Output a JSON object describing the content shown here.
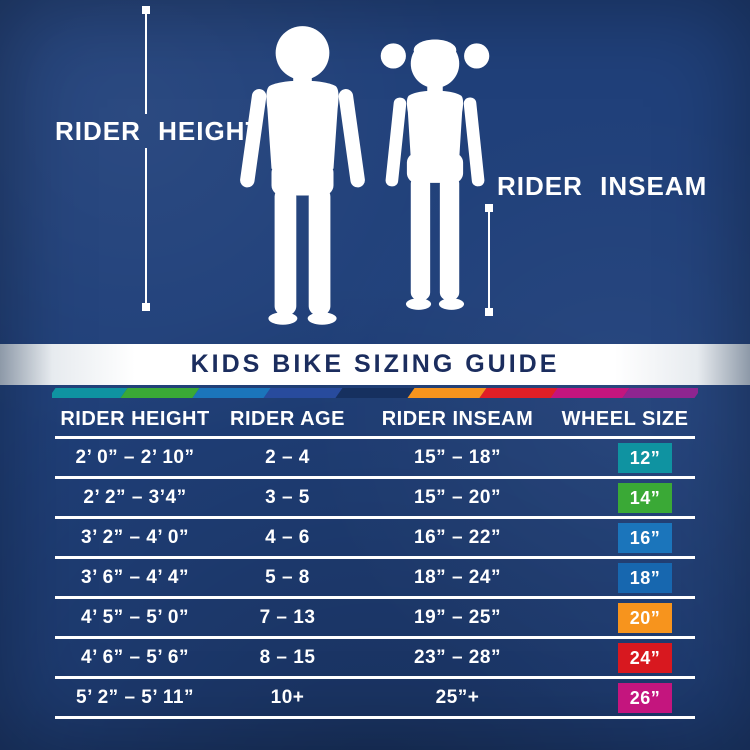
{
  "colors": {
    "background": "#20407a",
    "banner_text": "#1b2d5e",
    "table_text": "#ffffff"
  },
  "diagram": {
    "left_label": "RIDER HEIGHT",
    "right_label": "RIDER INSEAM"
  },
  "stripe_colors": [
    "#0f93a1",
    "#3aa936",
    "#1b75bb",
    "#284b9d",
    "#16305f",
    "#f7941d",
    "#e01f26",
    "#c4157e",
    "#8e2590"
  ],
  "chart_data": {
    "type": "table",
    "title": "KIDS BIKE SIZING GUIDE",
    "columns": [
      "RIDER HEIGHT",
      "RIDER AGE",
      "RIDER INSEAM",
      "WHEEL SIZE"
    ],
    "rows": [
      [
        "2’ 0” – 2’ 10”",
        "2 – 4",
        "15” – 18”",
        "12”"
      ],
      [
        "2’ 2” – 3’4”",
        "3 – 5",
        "15” – 20”",
        "14”"
      ],
      [
        "3’ 2” – 4’ 0”",
        "4 – 6",
        "16” – 22”",
        "16”"
      ],
      [
        "3’ 6” – 4’ 4”",
        "5 – 8",
        "18” – 24”",
        "18”"
      ],
      [
        "4’ 5” – 5’ 0”",
        "7 – 13",
        "19” – 25”",
        "20”"
      ],
      [
        "4’ 6” – 5’ 6”",
        "8 – 15",
        "23” – 28”",
        "24”"
      ],
      [
        "5’ 2” – 5’ 11”",
        "10+",
        "25”+",
        "26”"
      ]
    ],
    "wheel_badge_colors": [
      "#0f93a1",
      "#3aa936",
      "#1b75bb",
      "#1767af",
      "#f7941d",
      "#d8181f",
      "#c4157e"
    ]
  }
}
